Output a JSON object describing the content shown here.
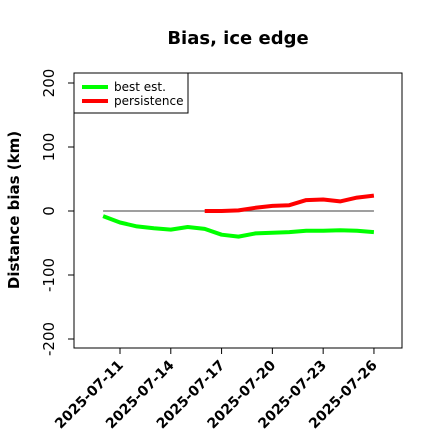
{
  "chart_data": {
    "type": "line",
    "title": "Bias, ice edge",
    "xlabel": "",
    "ylabel": "Distance bias (km)",
    "ylim": [
      -200,
      200
    ],
    "y_ticks": [
      -200,
      -100,
      0,
      100,
      200
    ],
    "x_tick_labels": [
      "2025-07-11",
      "2025-07-14",
      "2025-07-17",
      "2025-07-20",
      "2025-07-23",
      "2025-07-26"
    ],
    "reference_line": 0,
    "legend_position": "top-left",
    "grid": false,
    "series": [
      {
        "name": "best est.",
        "color": "#00ff00",
        "x": [
          "2025-07-10",
          "2025-07-11",
          "2025-07-12",
          "2025-07-13",
          "2025-07-14",
          "2025-07-15",
          "2025-07-16",
          "2025-07-17",
          "2025-07-18",
          "2025-07-19",
          "2025-07-20",
          "2025-07-21",
          "2025-07-22",
          "2025-07-23",
          "2025-07-24",
          "2025-07-25",
          "2025-07-26"
        ],
        "values": [
          -8,
          -18,
          -24,
          -27,
          -29,
          -25,
          -28,
          -37,
          -40,
          -35,
          -34,
          -33,
          -31,
          -31,
          -30,
          -31,
          -33
        ]
      },
      {
        "name": "persistence",
        "color": "#ff0000",
        "x": [
          "2025-07-16",
          "2025-07-17",
          "2025-07-18",
          "2025-07-19",
          "2025-07-20",
          "2025-07-21",
          "2025-07-22",
          "2025-07-23",
          "2025-07-24",
          "2025-07-25",
          "2025-07-26"
        ],
        "values": [
          0,
          0,
          1,
          5,
          8,
          9,
          17,
          18,
          15,
          21,
          24
        ]
      }
    ]
  }
}
